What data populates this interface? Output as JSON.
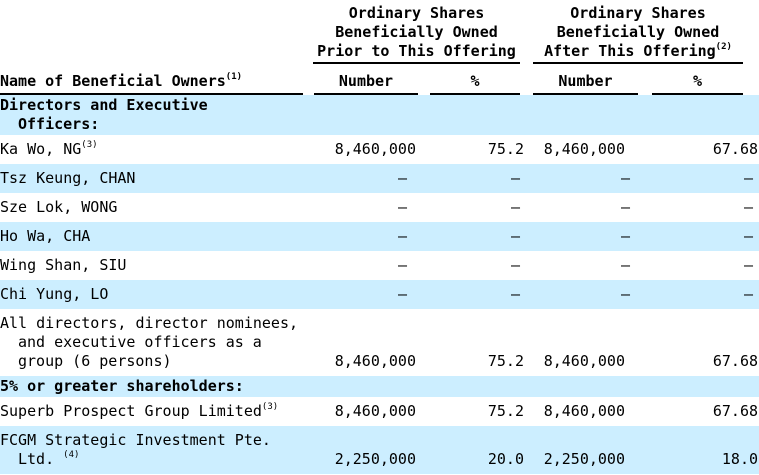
{
  "colors": {
    "row_shade": "#cceeff",
    "rule": "#000000",
    "text": "#000000"
  },
  "table": {
    "group_headers": {
      "prior": {
        "line1": "Ordinary Shares",
        "line2": "Beneficially Owned",
        "line3": "Prior to This Offering"
      },
      "after": {
        "line1": "Ordinary Shares",
        "line2": "Beneficially Owned",
        "line3": "After This Offering",
        "footnote": "(2)"
      }
    },
    "name_header": {
      "label": "Name of Beneficial Owners",
      "footnote": "(1)"
    },
    "sub_headers": {
      "prior_number": "Number",
      "prior_pct": "%",
      "after_number": "Number",
      "after_pct": "%"
    },
    "rows": [
      {
        "style": "section",
        "shaded": true,
        "name_lines": [
          {
            "text": "Directors and Executive"
          },
          {
            "text": "Officers:",
            "indent": true
          }
        ],
        "values": [
          "",
          "",
          "",
          ""
        ]
      },
      {
        "style": "data",
        "shaded": false,
        "name_lines": [
          {
            "text": "Ka Wo, NG",
            "sup": "(3)"
          }
        ],
        "values": [
          "8,460,000",
          "75.2",
          "8,460,000",
          "67.68"
        ]
      },
      {
        "style": "data",
        "shaded": true,
        "name_lines": [
          {
            "text": "Tsz Keung, CHAN"
          }
        ],
        "values": [
          "—",
          "—",
          "—",
          "—"
        ]
      },
      {
        "style": "data",
        "shaded": false,
        "name_lines": [
          {
            "text": "Sze Lok, WONG"
          }
        ],
        "values": [
          "—",
          "—",
          "—",
          "—"
        ]
      },
      {
        "style": "data",
        "shaded": true,
        "name_lines": [
          {
            "text": "Ho Wa, CHA"
          }
        ],
        "values": [
          "—",
          "—",
          "—",
          "—"
        ]
      },
      {
        "style": "data",
        "shaded": false,
        "name_lines": [
          {
            "text": "Wing Shan, SIU"
          }
        ],
        "values": [
          "—",
          "—",
          "—",
          "—"
        ]
      },
      {
        "style": "data",
        "shaded": true,
        "name_lines": [
          {
            "text": "Chi Yung, LO"
          }
        ],
        "values": [
          "—",
          "—",
          "—",
          "—"
        ]
      },
      {
        "style": "data",
        "shaded": false,
        "name_lines": [
          {
            "text": "All directors, director nominees,"
          },
          {
            "text": "and executive officers as a",
            "indent": true
          },
          {
            "text": "group (6 persons)",
            "indent": true
          }
        ],
        "values": [
          "8,460,000",
          "75.2",
          "8,460,000",
          "67.68"
        ]
      },
      {
        "style": "section",
        "shaded": true,
        "name_lines": [
          {
            "text": "5% or greater shareholders:"
          }
        ],
        "values": [
          "",
          "",
          "",
          ""
        ]
      },
      {
        "style": "data",
        "shaded": false,
        "name_lines": [
          {
            "text": "Superb Prospect Group Limited",
            "sup": "(3)"
          }
        ],
        "values": [
          "8,460,000",
          "75.2",
          "8,460,000",
          "67.68"
        ]
      },
      {
        "style": "data",
        "shaded": true,
        "name_lines": [
          {
            "text": "FCGM Strategic Investment Pte."
          },
          {
            "text": "Ltd. ",
            "sup": "(4)",
            "indent": true
          }
        ],
        "values": [
          "2,250,000",
          "20.0",
          "2,250,000",
          "18.0"
        ]
      }
    ]
  }
}
